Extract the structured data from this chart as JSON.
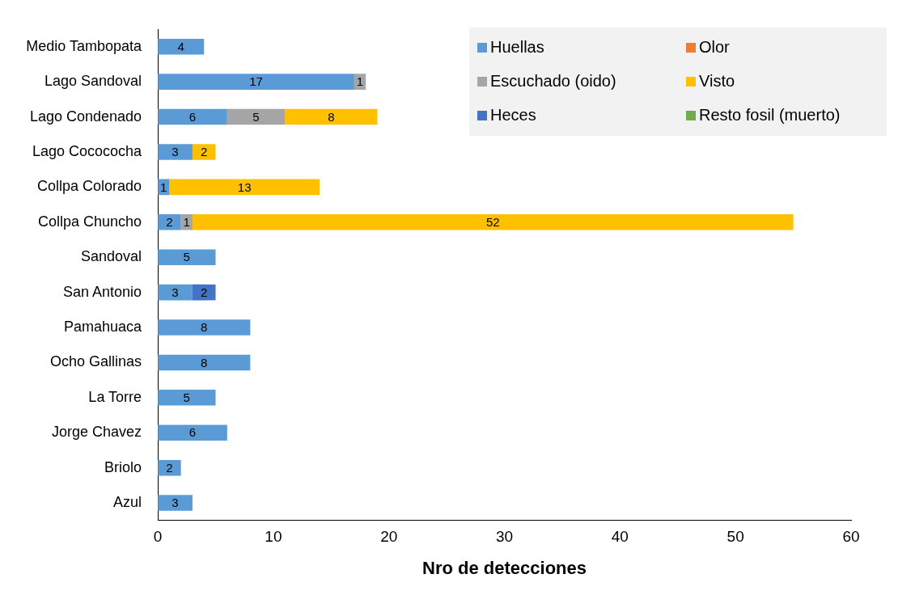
{
  "chart_data": {
    "type": "bar",
    "orientation": "horizontal",
    "stacked": true,
    "xlabel": "Nro de detecciones",
    "categories": [
      "Medio Tambopata",
      "Lago Sandoval",
      "Lago Condenado",
      "Lago Cocococha",
      "Collpa Colorado",
      "Collpa Chuncho",
      "Sandoval",
      "San Antonio",
      "Pamahuaca",
      "Ocho Gallinas",
      "La Torre",
      "Jorge Chavez",
      "Briolo",
      "Azul"
    ],
    "series": [
      {
        "name": "Huellas",
        "color": "#5b9bd5",
        "values": [
          4,
          17,
          6,
          3,
          1,
          2,
          5,
          3,
          8,
          8,
          5,
          6,
          2,
          3
        ]
      },
      {
        "name": "Olor",
        "color": "#ed7d31",
        "values": [
          null,
          null,
          null,
          null,
          null,
          null,
          null,
          null,
          null,
          null,
          null,
          null,
          null,
          null
        ]
      },
      {
        "name": "Escuchado (oido)",
        "color": "#a5a5a5",
        "values": [
          null,
          1,
          5,
          null,
          null,
          1,
          null,
          null,
          null,
          null,
          null,
          null,
          null,
          null
        ]
      },
      {
        "name": "Visto",
        "color": "#ffc000",
        "values": [
          null,
          null,
          8,
          2,
          13,
          52,
          null,
          null,
          null,
          null,
          null,
          null,
          null,
          null
        ]
      },
      {
        "name": "Heces",
        "color": "#4472c4",
        "values": [
          null,
          null,
          null,
          null,
          null,
          null,
          null,
          2,
          null,
          null,
          null,
          null,
          null,
          null
        ]
      },
      {
        "name": "Resto fosil (muerto)",
        "color": "#70ad47",
        "values": [
          null,
          null,
          null,
          null,
          null,
          null,
          null,
          null,
          null,
          null,
          null,
          null,
          null,
          null
        ]
      }
    ],
    "xlim": [
      0,
      60
    ],
    "xticks": [
      0,
      10,
      20,
      30,
      40,
      50,
      60
    ],
    "grid": false,
    "legend": "top right",
    "data_labels": true
  }
}
